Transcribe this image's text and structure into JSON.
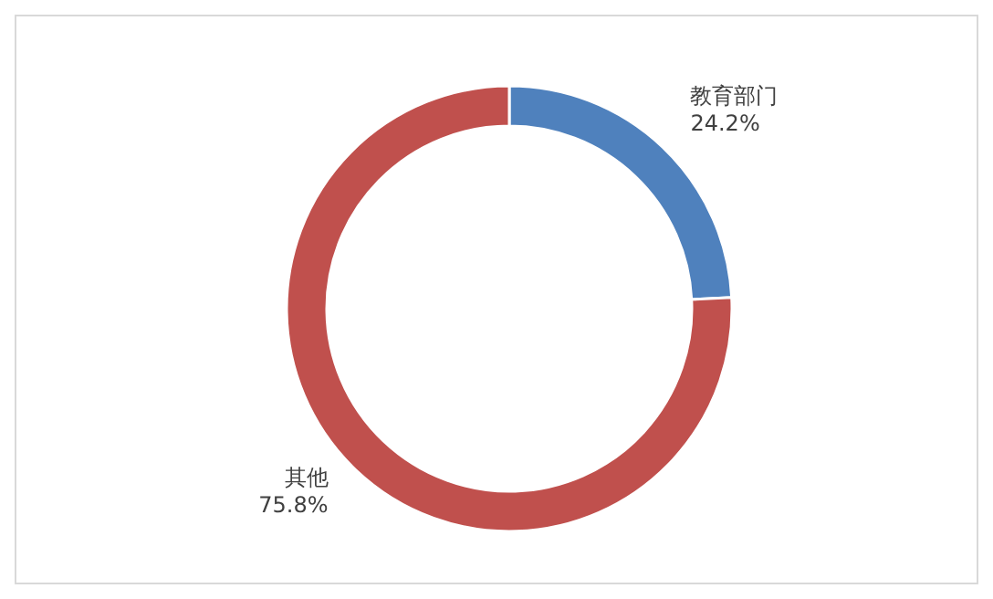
{
  "chart_data": {
    "type": "donut",
    "categories": [
      "教育部门",
      "其他"
    ],
    "values": [
      24.2,
      75.8
    ],
    "value_labels": [
      "24.2%",
      "75.8%"
    ],
    "colors": [
      "#4f81bd",
      "#c0504d"
    ]
  }
}
